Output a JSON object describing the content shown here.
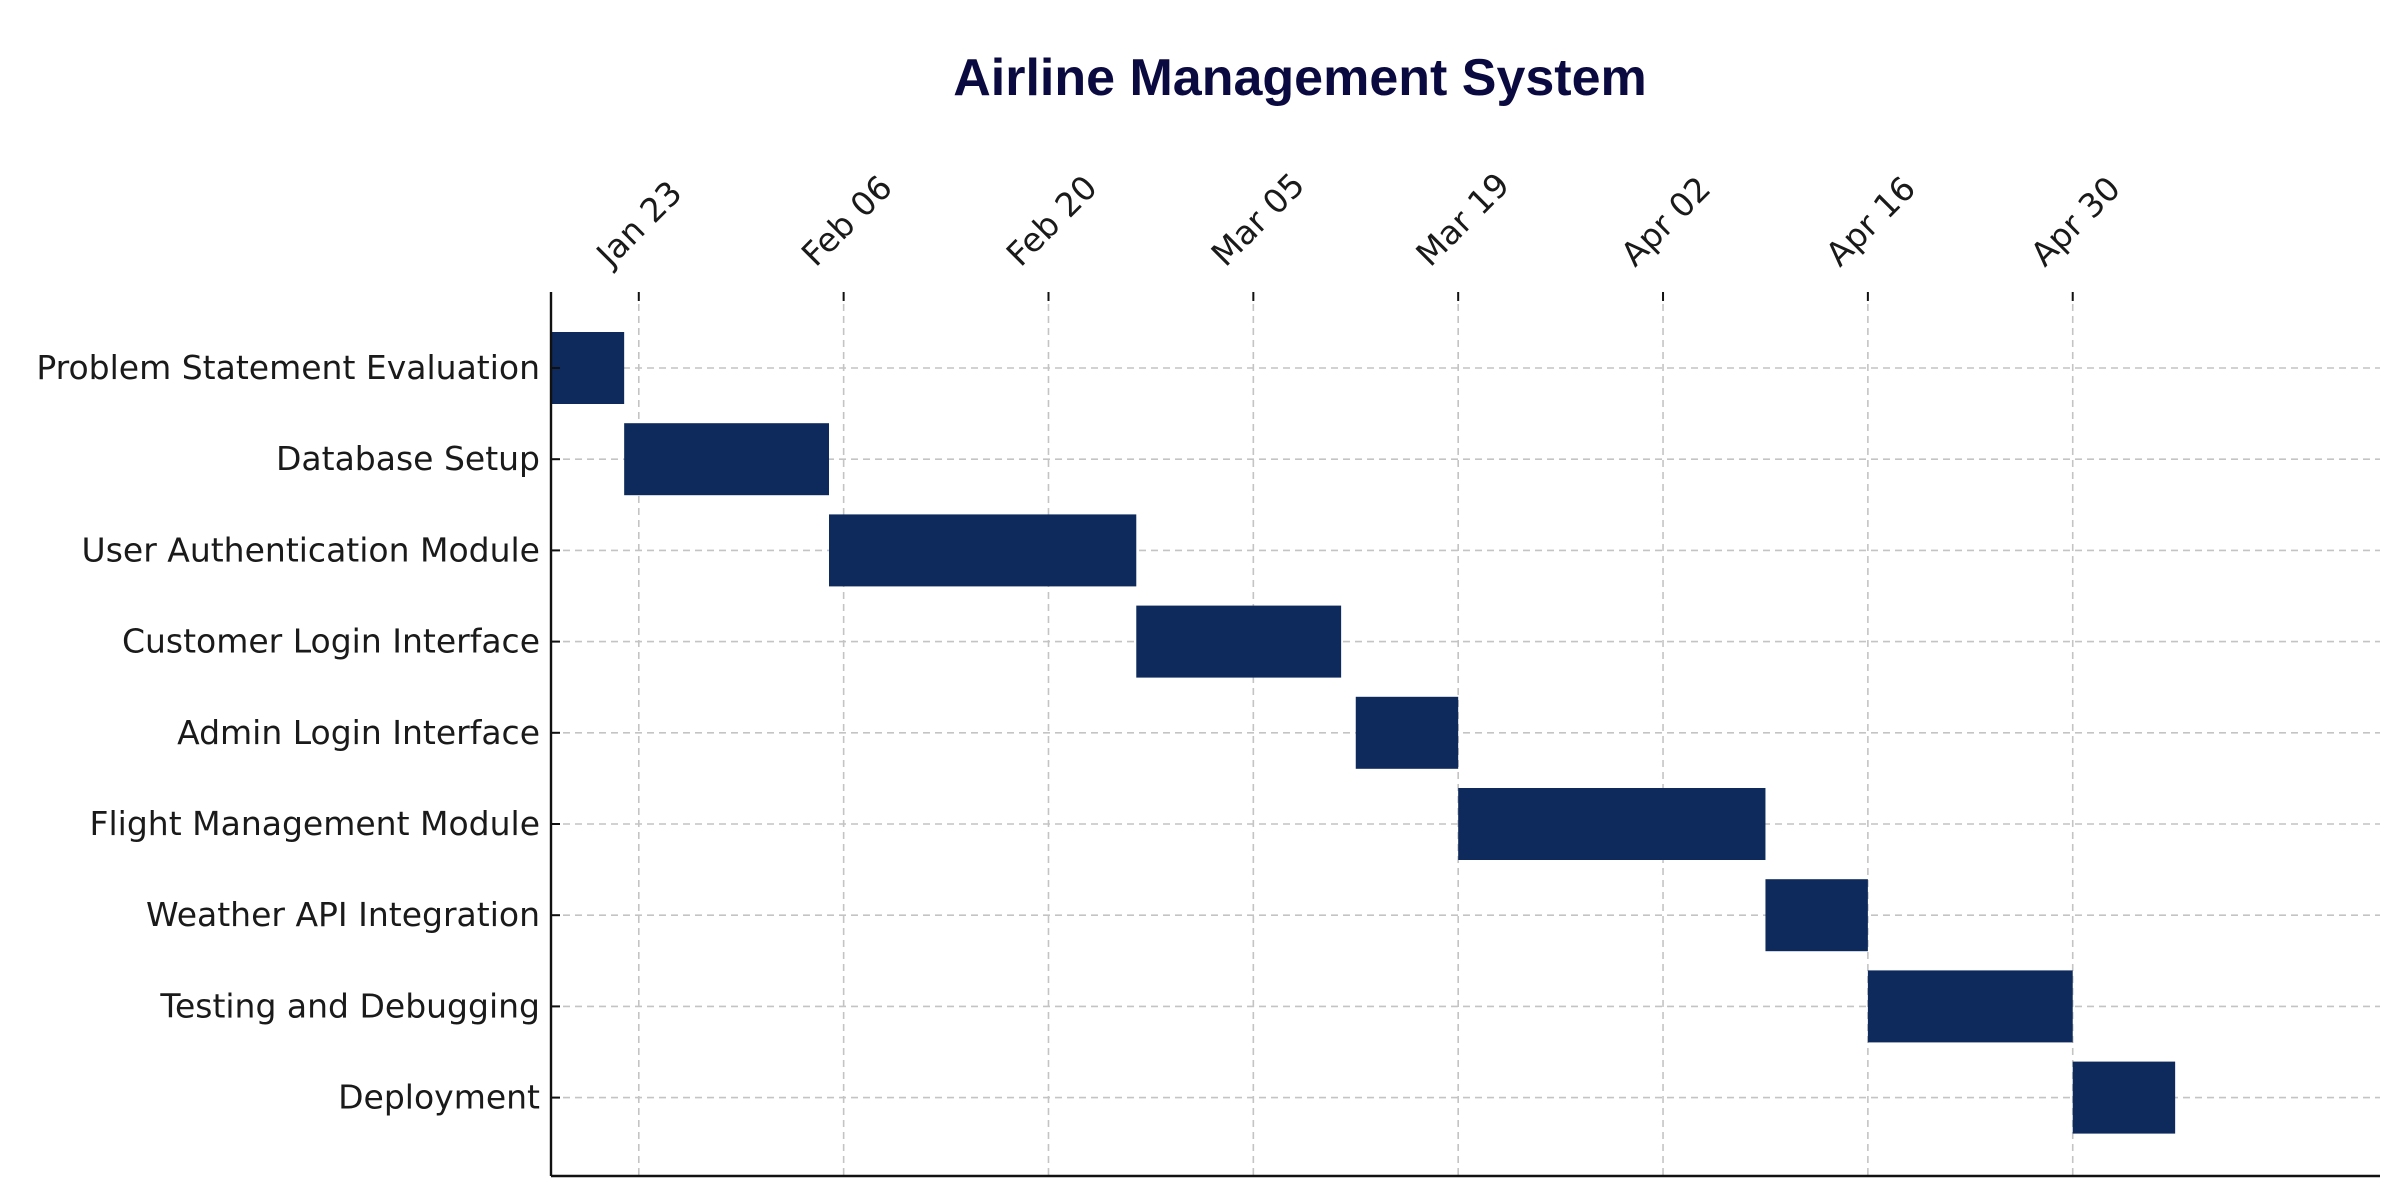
{
  "chart_data": {
    "type": "gantt",
    "title": "Airline Management System",
    "x_axis": {
      "type": "date",
      "range": [
        "2024-01-17",
        "2024-05-21"
      ],
      "ticks": [
        {
          "date": "2024-01-23",
          "label": "Jan 23"
        },
        {
          "date": "2024-02-06",
          "label": "Feb 06"
        },
        {
          "date": "2024-02-20",
          "label": "Feb 20"
        },
        {
          "date": "2024-03-05",
          "label": "Mar 05"
        },
        {
          "date": "2024-03-19",
          "label": "Mar 19"
        },
        {
          "date": "2024-04-02",
          "label": "Apr 02"
        },
        {
          "date": "2024-04-16",
          "label": "Apr 16"
        },
        {
          "date": "2024-04-30",
          "label": "Apr 30"
        }
      ],
      "position": "top"
    },
    "grid": true,
    "tasks": [
      {
        "name": "Problem Statement Evaluation",
        "start": "2024-01-15",
        "end": "2024-01-22"
      },
      {
        "name": "Database Setup",
        "start": "2024-01-22",
        "end": "2024-02-05"
      },
      {
        "name": "User Authentication Module",
        "start": "2024-02-05",
        "end": "2024-02-26"
      },
      {
        "name": "Customer Login Interface",
        "start": "2024-02-26",
        "end": "2024-03-11"
      },
      {
        "name": "Admin Login Interface",
        "start": "2024-03-12",
        "end": "2024-03-19"
      },
      {
        "name": "Flight Management Module",
        "start": "2024-03-19",
        "end": "2024-04-09"
      },
      {
        "name": "Weather API Integration",
        "start": "2024-04-09",
        "end": "2024-04-16"
      },
      {
        "name": "Testing and Debugging",
        "start": "2024-04-16",
        "end": "2024-04-30"
      },
      {
        "name": "Deployment",
        "start": "2024-04-30",
        "end": "2024-05-07"
      }
    ],
    "colors": {
      "bar": "#0e2a5c",
      "title": "#0a0a40"
    }
  }
}
